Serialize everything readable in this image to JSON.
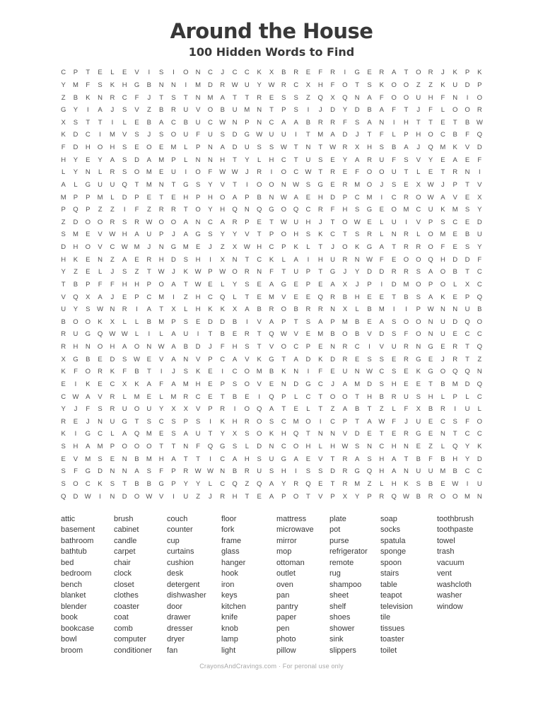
{
  "page": {
    "title": "Around the House",
    "subtitle": "100 Hidden Words to Find",
    "footer": "CrayonsAndCravings.com · For peronal use only"
  },
  "colors": {
    "heading_text": "#383838",
    "grid_letter": "#4e4e4e",
    "word_text": "#383838",
    "footer_text": "#a8a8a8",
    "background": "#ffffff"
  },
  "puzzle": {
    "rows": 35,
    "cols": 35,
    "grid": [
      "CPTELEVISIONCJCCKXBREFRIGERATORJKPK",
      "YMFSKHGBNNIMDRWUYWRCXHFOTSKOOZZKUDP",
      "ZBKNRCFJTSTNMATTRESSZQXQNAFOOUHFNIO",
      "GYIAJSVZBRUVOBUMNTPSIJDYDBAFTJFLOOR",
      "XSTTILEBACBUCWNPNCAABRRFSANIHTTETBW",
      "KDCIMVSJSOUFUSDGWUUITMADJTFLPHOCBFQ",
      "FDHOHSEOEMLPNADUSSWTNTWRXHSBAJQMKVD",
      "HYEYASDAMPLNNHTYLHCTUSEYARUFSVYEAEF",
      "LYNLRSOMEUIOFWWJRIOCWTREFOOUTLETRNI",
      "ALGUUQTMNTGSYVTIOONWSGERMOJSEXWJPTV",
      "MPPMLDPETEHPHOAPBNWAEHDPCMICROWAVEX",
      "PQPZZIFZRRTOYHQNQGOQCRFHSGEOMCUKMSY",
      "ZDOORSRWOOANCARPETWUHJTOWELUIVPSCED",
      "SMEVWHAUPJAGSYYVTPOHSKCTSRLNRLOMEBU",
      "DHOVCWMJNGMEJZXWHCPKLTJOKGATRROFESY",
      "HKENZAERHDSHIXNTCKLAIHURNWFEOOQHDDF",
      "YZELJSZTWJKWPWORNFTUPTGJYDDRRSAOBTC",
      "TBPFFHHPOATWELYSEAGEPEAXJPIDMOPOLXC",
      "VQXAJEPCMIZHCQLTEMVEEQRBHEETBSAKEPQ",
      "UYSWNRIATXLHKKXABROBRRNXLBMIIPWNNUB",
      "BOOKXLLBMPSEDDBIVAPTSAPMBEASOONUDQO",
      "RUGQWWLILAUITBERTQWVEMBOBVDSFONUECC",
      "RHNOHAONWABDJFHSTVOCPENRCIVURNGERTQ",
      "XGBEDSWEVANVPCAVKGTADKDRESSERGEJRTZ",
      "KFORKFBTIJSKEICOMBKNIFEUNWCSEKGOQQN",
      "EIKECXKAFAMHEPSOVENDGCJAMDSHEETBMDQ",
      "CWAVRLMELMRCETBEIQPLCTOOTHBRUSHLPLC",
      "YJFSRUOUYXXVPRIOQATELTZABTZLFXBRIUL",
      "REJNUGTSCSPSIKHROSCMOICPTAWFJUECSFO",
      "KIGCLAQMESAUTYXSOKHQTNNVDETERGENTCC",
      "SHAMPOOOTTNFQGSLDNCOHLHWSNCHNEZLQYK",
      "EVMSENBMHATTICAHSUGAEVTRASHATBFBHYD",
      "SFGDNNASFPRWWNBRUSHISSDRGQHANUUMBCC",
      "SOCKSTBBGPYYLCQZQAYRQETRMZLHKSBEWIU",
      "QDWINDOWVIUZJRHTEAPOTVPXYPRQWBROOMN"
    ]
  },
  "word_list": {
    "columns": [
      [
        "attic",
        "basement",
        "bathroom",
        "bathtub",
        "bed",
        "bedroom",
        "bench",
        "blanket",
        "blender",
        "book",
        "bookcase",
        "bowl",
        "broom"
      ],
      [
        "brush",
        "cabinet",
        "candle",
        "carpet",
        "chair",
        "clock",
        "closet",
        "clothes",
        "coaster",
        "coat",
        "comb",
        "computer",
        "conditioner"
      ],
      [
        "couch",
        "counter",
        "cup",
        "curtains",
        "cushion",
        "desk",
        "detergent",
        "dishwasher",
        "door",
        "drawer",
        "dresser",
        "dryer",
        "fan"
      ],
      [
        "floor",
        "fork",
        "frame",
        "glass",
        "hanger",
        "hook",
        "iron",
        "keys",
        "kitchen",
        "knife",
        "knob",
        "lamp",
        "light"
      ],
      [
        "mattress",
        "microwave",
        "mirror",
        "mop",
        "ottoman",
        "outlet",
        "oven",
        "pan",
        "pantry",
        "paper",
        "pen",
        "photo",
        "pillow"
      ],
      [
        "plate",
        "pot",
        "purse",
        "refrigerator",
        "remote",
        "rug",
        "shampoo",
        "sheet",
        "shelf",
        "shoes",
        "shower",
        "sink",
        "slippers"
      ],
      [
        "soap",
        "socks",
        "spatula",
        "sponge",
        "spoon",
        "stairs",
        "table",
        "teapot",
        "television",
        "tile",
        "tissues",
        "toaster",
        "toilet"
      ],
      [
        "toothbrush",
        "toothpaste",
        "towel",
        "trash",
        "vacuum",
        "vent",
        "washcloth",
        "washer",
        "window"
      ]
    ]
  }
}
